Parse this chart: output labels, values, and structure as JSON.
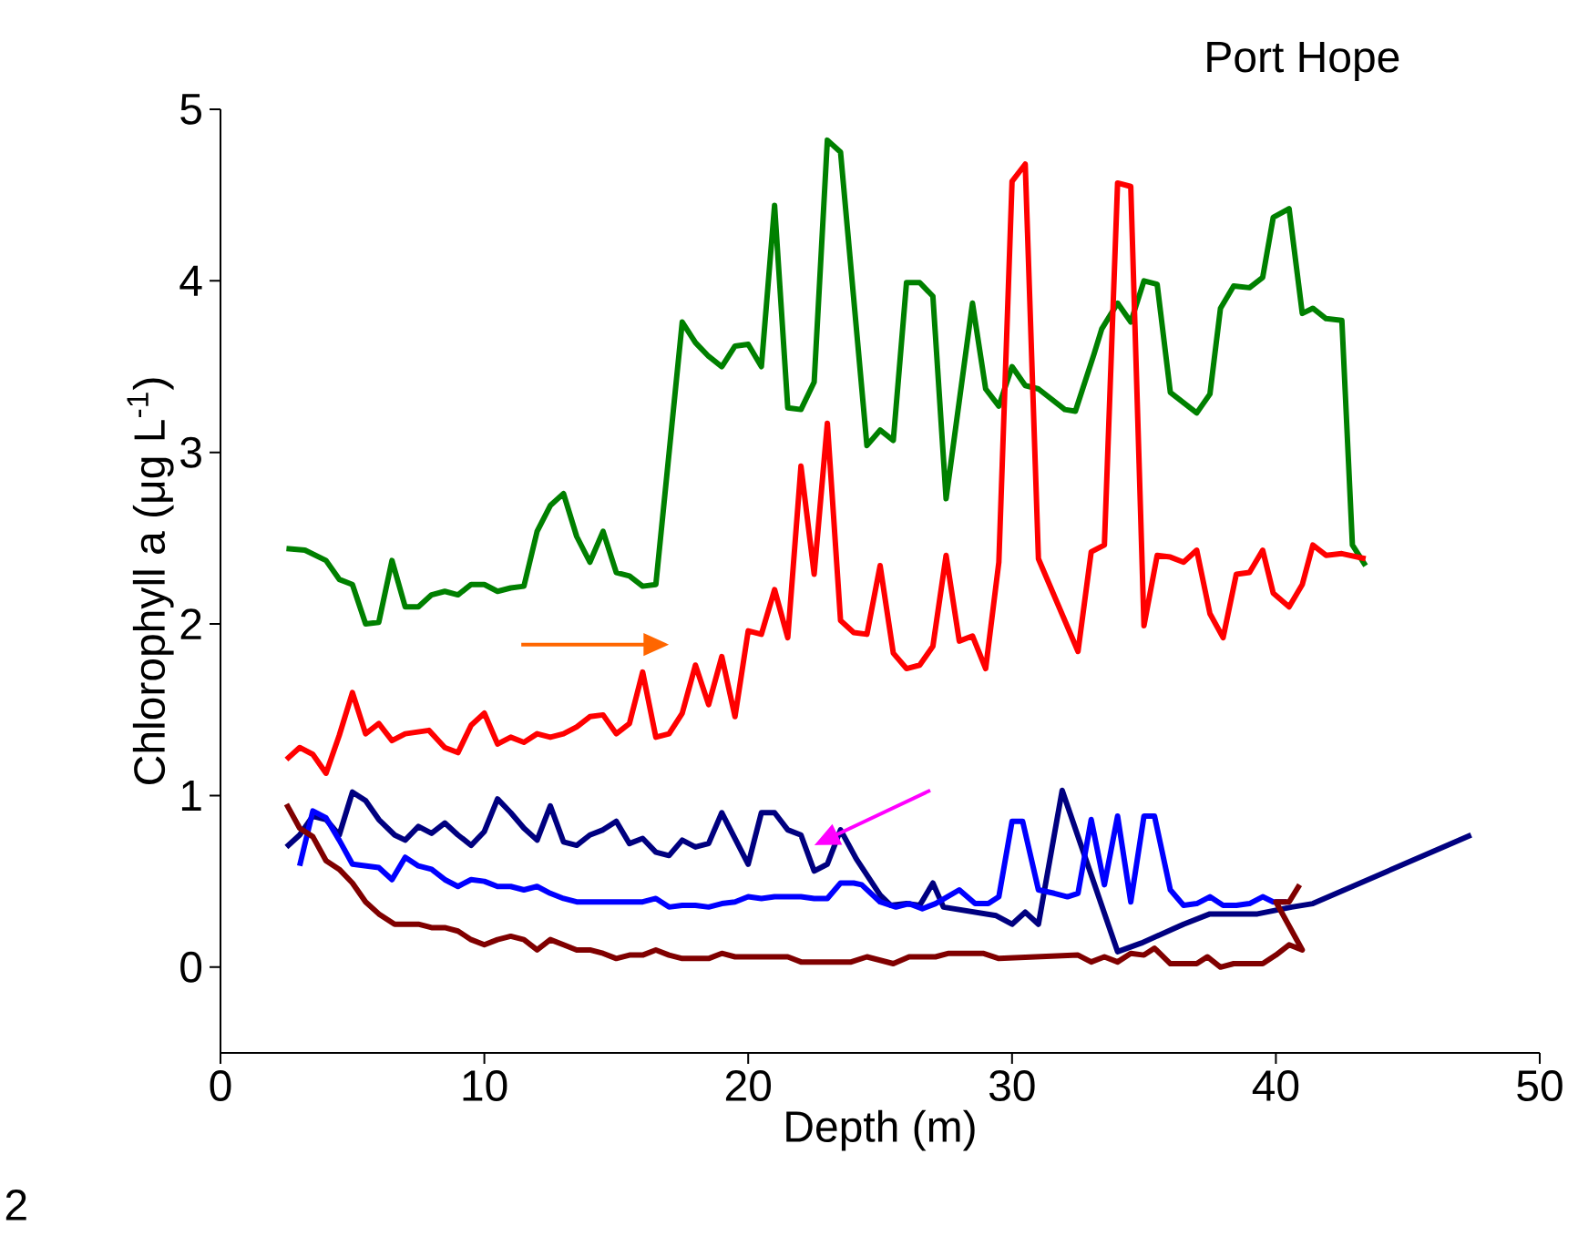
{
  "chart_data": {
    "type": "line",
    "title": "Port Hope",
    "xlabel": "Depth (m)",
    "ylabel": "Chlorophyll a (μg L$^{-1}$)",
    "annotations": [
      "2"
    ],
    "xlim": [
      0,
      50
    ],
    "ylim": [
      -0.5,
      5
    ],
    "xticks": [
      0,
      10,
      20,
      30,
      40,
      50
    ],
    "yticks": [
      0,
      1,
      2,
      3,
      4,
      5
    ],
    "grid": false,
    "series": [
      {
        "color": "#008000",
        "x": [
          2.5,
          3.2,
          4.0,
          4.5,
          5.0,
          5.5,
          6.0,
          6.5,
          7.0,
          7.5,
          8.0,
          8.5,
          9.0,
          9.5,
          10.0,
          10.5,
          11.0,
          11.5,
          12.0,
          12.5,
          13.0,
          13.5,
          14.0,
          14.5,
          15.0,
          15.5,
          16.0,
          16.5,
          17.5,
          18.0,
          18.5,
          19.0,
          19.5,
          20.0,
          20.5,
          21.0,
          21.5,
          22.0,
          22.5,
          23.0,
          23.5,
          24.5,
          25.0,
          25.5,
          26.0,
          26.5,
          27.0,
          27.5,
          28.5,
          29.0,
          29.5,
          30.0,
          30.5,
          31.0,
          32.0,
          32.4,
          33.1,
          33.4,
          34.0,
          34.5,
          35.0,
          35.5,
          36.0,
          37.0,
          37.5,
          37.9,
          38.4,
          39.0,
          39.5,
          39.9,
          40.5,
          41.0,
          41.4,
          41.9,
          42.5,
          42.9,
          43.4
        ],
        "values": [
          2.44,
          2.43,
          2.37,
          2.26,
          2.23,
          2.0,
          2.01,
          2.37,
          2.1,
          2.1,
          2.17,
          2.19,
          2.17,
          2.23,
          2.23,
          2.19,
          2.21,
          2.22,
          2.54,
          2.69,
          2.76,
          2.51,
          2.36,
          2.54,
          2.3,
          2.28,
          2.22,
          2.23,
          3.76,
          3.64,
          3.56,
          3.5,
          3.62,
          3.63,
          3.5,
          4.44,
          3.26,
          3.25,
          3.41,
          4.82,
          4.75,
          3.04,
          3.13,
          3.07,
          3.99,
          3.99,
          3.91,
          2.73,
          3.87,
          3.37,
          3.27,
          3.5,
          3.39,
          3.37,
          3.25,
          3.24,
          3.57,
          3.72,
          3.87,
          3.76,
          4.0,
          3.98,
          3.35,
          3.23,
          3.34,
          3.84,
          3.97,
          3.96,
          4.02,
          4.37,
          4.42,
          3.81,
          3.84,
          3.78,
          3.77,
          2.46,
          2.34
        ]
      },
      {
        "color": "#ff0000",
        "x": [
          2.5,
          3.0,
          3.5,
          4.0,
          4.5,
          5.0,
          5.5,
          6.0,
          6.5,
          7.0,
          7.9,
          8.5,
          9.0,
          9.5,
          10.0,
          10.5,
          11.0,
          11.5,
          12.0,
          12.5,
          13.0,
          13.5,
          14.0,
          14.5,
          15.0,
          15.5,
          16.0,
          16.5,
          17.0,
          17.5,
          18.0,
          18.5,
          19.0,
          19.5,
          20.0,
          20.5,
          21.0,
          21.5,
          22.0,
          22.5,
          23.0,
          23.5,
          24.0,
          24.5,
          25.0,
          25.5,
          26.0,
          26.5,
          27.0,
          27.5,
          28.0,
          28.5,
          29.0,
          29.5,
          30.0,
          30.5,
          31.0,
          32.5,
          33.0,
          33.5,
          34.0,
          34.5,
          35.0,
          35.5,
          36.0,
          36.5,
          37.0,
          37.5,
          38.0,
          38.5,
          39.0,
          39.5,
          39.9,
          40.5,
          41.0,
          41.4,
          41.9,
          42.5,
          43.4
        ],
        "values": [
          1.21,
          1.28,
          1.24,
          1.13,
          1.35,
          1.6,
          1.36,
          1.42,
          1.32,
          1.36,
          1.38,
          1.28,
          1.25,
          1.41,
          1.48,
          1.3,
          1.34,
          1.31,
          1.36,
          1.34,
          1.36,
          1.4,
          1.46,
          1.47,
          1.36,
          1.42,
          1.72,
          1.34,
          1.36,
          1.48,
          1.76,
          1.53,
          1.81,
          1.46,
          1.96,
          1.94,
          2.2,
          1.92,
          2.92,
          2.29,
          3.17,
          2.02,
          1.95,
          1.94,
          2.34,
          1.83,
          1.74,
          1.76,
          1.87,
          2.4,
          1.9,
          1.93,
          1.74,
          2.36,
          4.58,
          4.68,
          2.38,
          1.84,
          2.42,
          2.46,
          4.57,
          4.55,
          1.99,
          2.4,
          2.39,
          2.36,
          2.43,
          2.06,
          1.92,
          2.29,
          2.3,
          2.43,
          2.18,
          2.1,
          2.23,
          2.46,
          2.4,
          2.41,
          2.38
        ]
      },
      {
        "color": "#000080",
        "x": [
          2.5,
          3.0,
          3.5,
          4.0,
          4.5,
          5.0,
          5.5,
          6.0,
          6.6,
          7.0,
          7.5,
          8.0,
          8.5,
          9.0,
          9.5,
          10.0,
          10.5,
          11.0,
          11.5,
          12.0,
          12.5,
          13.0,
          13.5,
          14.0,
          14.5,
          15.0,
          15.5,
          16.0,
          16.5,
          17.0,
          17.5,
          18.0,
          18.5,
          19.0,
          20.0,
          20.5,
          21.0,
          21.5,
          22.0,
          22.5,
          23.0,
          23.5,
          24.1,
          25.0,
          25.4,
          26.0,
          26.5,
          27.0,
          27.4,
          29.4,
          30.0,
          30.5,
          31.0,
          31.9,
          34.0,
          34.9,
          36.5,
          37.5,
          39.3,
          40.6,
          41.4,
          47.4
        ],
        "values": [
          0.7,
          0.77,
          0.88,
          0.86,
          0.77,
          1.02,
          0.97,
          0.86,
          0.77,
          0.74,
          0.82,
          0.78,
          0.84,
          0.77,
          0.71,
          0.79,
          0.98,
          0.9,
          0.81,
          0.74,
          0.94,
          0.73,
          0.71,
          0.77,
          0.8,
          0.85,
          0.72,
          0.75,
          0.67,
          0.65,
          0.74,
          0.7,
          0.72,
          0.9,
          0.6,
          0.9,
          0.9,
          0.8,
          0.77,
          0.56,
          0.6,
          0.8,
          0.63,
          0.42,
          0.36,
          0.37,
          0.36,
          0.49,
          0.35,
          0.3,
          0.25,
          0.32,
          0.25,
          1.03,
          0.09,
          0.14,
          0.25,
          0.31,
          0.31,
          0.35,
          0.37,
          0.77
        ]
      },
      {
        "color": "#0000ff",
        "x": [
          3.0,
          3.5,
          4.0,
          4.5,
          5.0,
          6.0,
          6.5,
          7.0,
          7.5,
          8.0,
          8.5,
          9.0,
          9.5,
          10.0,
          10.5,
          11.0,
          11.5,
          12.0,
          12.5,
          13.0,
          13.5,
          14.0,
          14.5,
          15.0,
          15.5,
          16.0,
          16.5,
          17.0,
          17.5,
          18.0,
          18.5,
          19.0,
          19.5,
          20.0,
          20.5,
          21.0,
          21.5,
          22.0,
          22.5,
          23.0,
          23.5,
          24.0,
          24.3,
          25.0,
          25.6,
          26.1,
          26.6,
          27.1,
          28.0,
          28.6,
          29.1,
          29.5,
          30.0,
          30.4,
          31.0,
          31.6,
          32.1,
          32.5,
          33.0,
          33.5,
          34.0,
          34.5,
          35.0,
          35.4,
          36.0,
          36.5,
          37.0,
          37.5,
          38.0,
          38.5,
          39.0,
          39.5,
          39.9,
          40.4
        ],
        "values": [
          0.59,
          0.91,
          0.87,
          0.74,
          0.6,
          0.58,
          0.51,
          0.64,
          0.59,
          0.57,
          0.51,
          0.47,
          0.51,
          0.5,
          0.47,
          0.47,
          0.45,
          0.47,
          0.43,
          0.4,
          0.38,
          0.38,
          0.38,
          0.38,
          0.38,
          0.38,
          0.4,
          0.35,
          0.36,
          0.36,
          0.35,
          0.37,
          0.38,
          0.41,
          0.4,
          0.41,
          0.41,
          0.41,
          0.4,
          0.4,
          0.49,
          0.49,
          0.48,
          0.38,
          0.35,
          0.37,
          0.34,
          0.37,
          0.45,
          0.37,
          0.37,
          0.41,
          0.85,
          0.85,
          0.45,
          0.43,
          0.41,
          0.43,
          0.86,
          0.48,
          0.88,
          0.38,
          0.88,
          0.88,
          0.45,
          0.36,
          0.37,
          0.41,
          0.36,
          0.36,
          0.37,
          0.41,
          0.38,
          0.38
        ]
      },
      {
        "color": "#800000",
        "x": [
          2.5,
          3.0,
          3.5,
          4.0,
          4.5,
          5.0,
          5.5,
          6.0,
          6.6,
          7.5,
          8.0,
          8.5,
          9.0,
          9.5,
          10.0,
          10.5,
          11.0,
          11.5,
          12.0,
          12.5,
          13.0,
          13.5,
          14.0,
          14.5,
          15.0,
          15.5,
          16.0,
          16.5,
          17.0,
          17.5,
          18.5,
          19.0,
          19.5,
          21.5,
          22.0,
          23.9,
          24.5,
          25.5,
          26.1,
          27.1,
          27.6,
          28.9,
          29.5,
          32.5,
          33.0,
          33.5,
          34.0,
          34.5,
          35.0,
          35.4,
          36.0,
          37.0,
          37.4,
          37.9,
          38.4,
          39.5,
          40.0,
          40.5,
          41.0,
          40.0,
          40.5,
          40.9
        ],
        "values": [
          0.95,
          0.81,
          0.76,
          0.62,
          0.57,
          0.49,
          0.38,
          0.31,
          0.25,
          0.25,
          0.23,
          0.23,
          0.21,
          0.16,
          0.13,
          0.16,
          0.18,
          0.16,
          0.1,
          0.16,
          0.13,
          0.1,
          0.1,
          0.08,
          0.05,
          0.07,
          0.07,
          0.1,
          0.07,
          0.05,
          0.05,
          0.08,
          0.06,
          0.06,
          0.03,
          0.03,
          0.06,
          0.02,
          0.06,
          0.06,
          0.08,
          0.08,
          0.05,
          0.07,
          0.03,
          0.06,
          0.03,
          0.08,
          0.07,
          0.11,
          0.02,
          0.02,
          0.06,
          0.0,
          0.02,
          0.02,
          0.07,
          0.13,
          0.1,
          0.38,
          0.38,
          0.48
        ]
      }
    ]
  }
}
